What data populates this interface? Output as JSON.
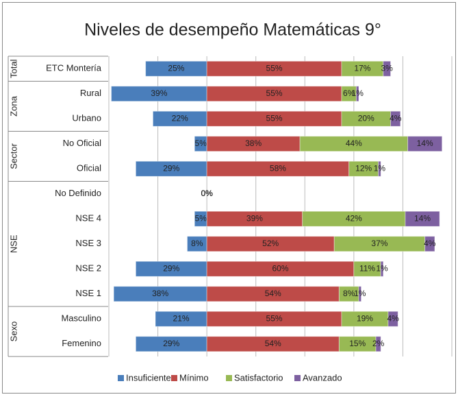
{
  "chart_data": {
    "type": "diverging-bar",
    "title": "Niveles de desempeño Matemáticas 9°",
    "groups": [
      {
        "name": "Total",
        "categories": [
          "ETC Montería"
        ]
      },
      {
        "name": "Zona",
        "categories": [
          "Rural",
          "Urbano"
        ]
      },
      {
        "name": "Sector",
        "categories": [
          "No Oficial",
          "Oficial"
        ]
      },
      {
        "name": "NSE",
        "categories": [
          "No Definido",
          "NSE 4",
          "NSE 3",
          "NSE 2",
          "NSE 1"
        ]
      },
      {
        "name": "Sexo",
        "categories": [
          "Masculino",
          "Femenino"
        ]
      }
    ],
    "series": [
      {
        "name": "Insuficiente",
        "color": "#4a7ebb",
        "direction": "left",
        "values": [
          25,
          39,
          22,
          5,
          29,
          0,
          5,
          8,
          29,
          38,
          21,
          29
        ],
        "value_labels": [
          "25%",
          "39%",
          "22%",
          "5%",
          "29%",
          "0%",
          "5%",
          "8%",
          "29%",
          "38%",
          "21%",
          "29%"
        ]
      },
      {
        "name": "Mínimo",
        "color": "#be4b48",
        "direction": "right",
        "values": [
          55,
          55,
          55,
          38,
          58,
          0,
          39,
          52,
          60,
          54,
          55,
          54
        ],
        "value_labels": [
          "55%",
          "55%",
          "55%",
          "38%",
          "58%",
          "0%",
          "39%",
          "52%",
          "60%",
          "54%",
          "55%",
          "54%"
        ]
      },
      {
        "name": "Satisfactorio",
        "color": "#98b954",
        "direction": "right",
        "values": [
          17,
          6,
          20,
          44,
          12,
          0,
          42,
          37,
          11,
          8,
          19,
          15
        ],
        "value_labels": [
          "17%",
          "6%",
          "20%",
          "44%",
          "12%",
          "0%",
          "42%",
          "37%",
          "11%",
          "8%",
          "19%",
          "15%"
        ]
      },
      {
        "name": "Avanzado",
        "color": "#7d60a0",
        "direction": "right",
        "values": [
          3,
          1,
          4,
          14,
          1,
          0,
          14,
          4,
          1,
          1,
          4,
          2
        ],
        "value_labels": [
          "3%",
          "1%",
          "4%",
          "14%",
          "1%",
          "0%",
          "14%",
          "4%",
          "1%",
          "1%",
          "4%",
          "2%"
        ]
      }
    ],
    "xlim": [
      -40,
      100
    ],
    "xticks": [
      -40,
      -20,
      0,
      20,
      40,
      60,
      80,
      100
    ],
    "grid": true,
    "legend": "bottom"
  }
}
